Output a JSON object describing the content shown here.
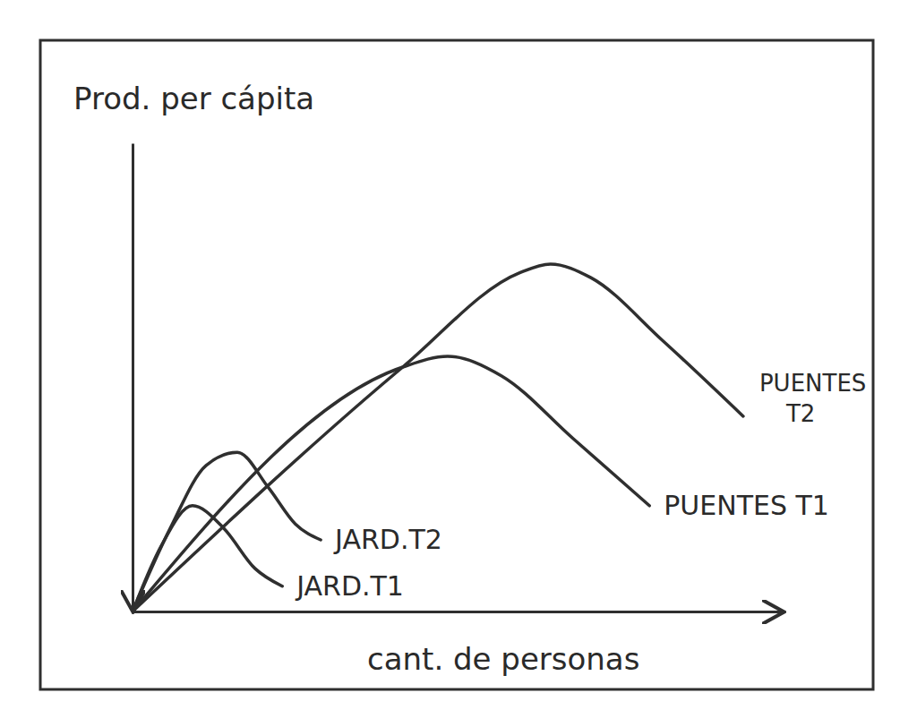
{
  "chart_data": {
    "type": "line",
    "y_label": "Prod. per cápita",
    "x_label": "cant. de personas",
    "xlim": [
      0,
      100
    ],
    "ylim": [
      0,
      100
    ],
    "tick_labels": false,
    "color": "#2f2f2f",
    "series": [
      {
        "name": "JARD.T2",
        "x": [
          0,
          5.8,
          11.3,
          16.1,
          20.9,
          25,
          28.9
        ],
        "values": [
          0,
          17.8,
          31.2,
          34,
          26.4,
          18.7,
          15.3
        ]
      },
      {
        "name": "JARD.T1",
        "x": [
          0,
          4.4,
          9.2,
          14,
          18.8,
          23
        ],
        "values": [
          0,
          14,
          22.6,
          17.8,
          9.2,
          5.4
        ]
      },
      {
        "name": "PUENTES T2",
        "x": [
          0,
          41.5,
          59.4,
          64.2,
          70.4,
          81.4,
          93.8
        ],
        "values": [
          0,
          52.2,
          72.3,
          74.2,
          71.3,
          57.9,
          41.7
        ]
      },
      {
        "name": "PUENTES T1",
        "x": [
          0,
          41.5,
          48.4,
          56.7,
          67.7,
          79.4
        ],
        "values": [
          0,
          52.2,
          54.5,
          50.3,
          36.9,
          22.6
        ]
      }
    ]
  }
}
